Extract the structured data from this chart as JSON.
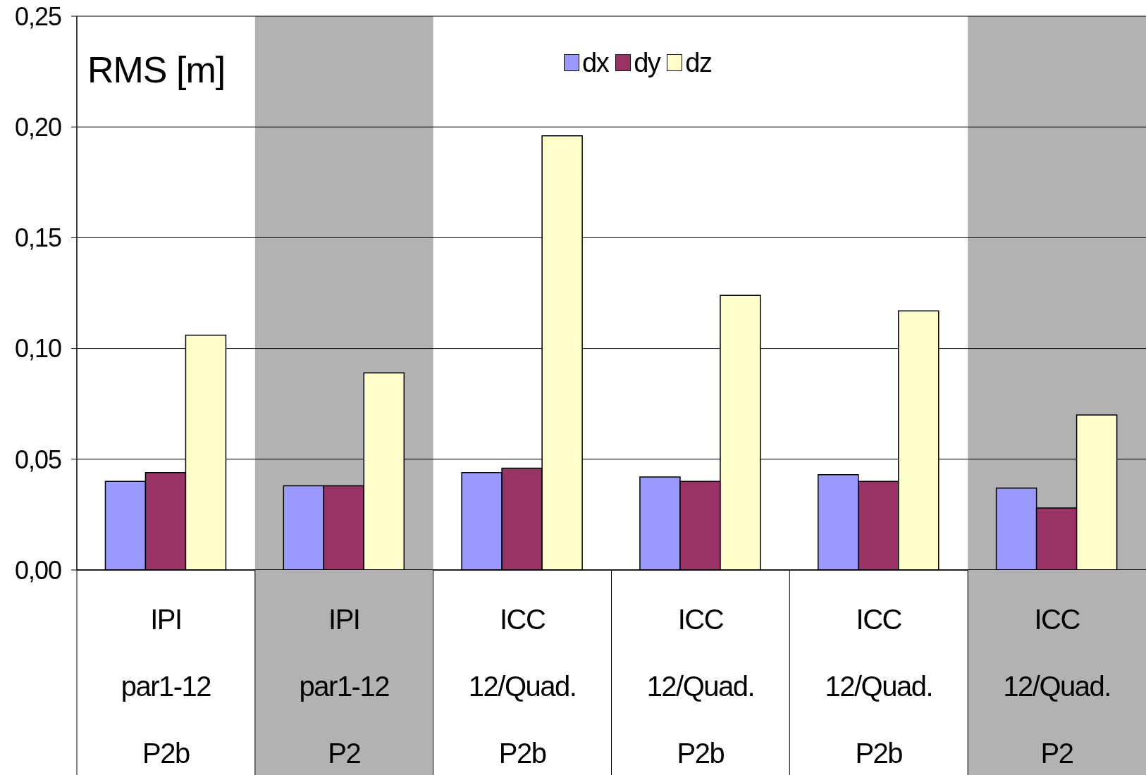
{
  "chart_data": {
    "type": "bar",
    "ylabel": "RMS [m]",
    "categories": [
      "IPI\npar1-12\nP2b",
      "IPI\npar1-12\nP2",
      "ICC\n12/Quad.\nP2b",
      "ICC\n12/Quad.\nP2b",
      "ICC\n12/Quad.\nP2b",
      "ICC\n12/Quad.\nP2"
    ],
    "series": [
      {
        "name": "dx",
        "color": "#9999ff",
        "values": [
          0.04,
          0.038,
          0.044,
          0.042,
          0.043,
          0.037
        ]
      },
      {
        "name": "dy",
        "color": "#993366",
        "values": [
          0.044,
          0.038,
          0.046,
          0.04,
          0.04,
          0.028
        ]
      },
      {
        "name": "dz",
        "color": "#ffffcc",
        "values": [
          0.106,
          0.089,
          0.196,
          0.124,
          0.117,
          0.07
        ]
      }
    ],
    "ylim": [
      0,
      0.25
    ],
    "yticks": [
      {
        "value": 0,
        "label": "0,00"
      },
      {
        "value": 0.05,
        "label": "0,05"
      },
      {
        "value": 0.1,
        "label": "0,10"
      },
      {
        "value": 0.15,
        "label": "0,15"
      },
      {
        "value": 0.2,
        "label": "0,20"
      },
      {
        "value": 0.25,
        "label": "0,25"
      }
    ],
    "grid": "y",
    "legend": "top",
    "bands": [
      {
        "axis": "x",
        "from": "IPI\npar1-12\nP2",
        "to": "IPI\npar1-12\nP2",
        "color": "#b2b2b2"
      },
      {
        "axis": "x",
        "from": "ICC\n12/Quad.\nP2",
        "to": "ICC\n12/Quad.\nP2",
        "color": "#b2b2b2"
      }
    ]
  }
}
